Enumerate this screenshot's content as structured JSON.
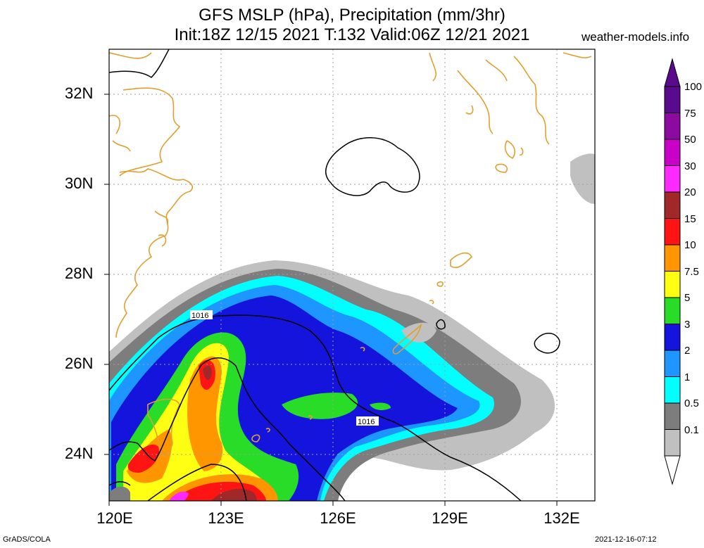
{
  "header": {
    "title_line1": "GFS MSLP (hPa), Precipitation (mm/3hr)",
    "title_line2": "Init:18Z 12/15 2021 T:132 Valid:06Z 12/21 2021",
    "site": "weather-models.info"
  },
  "axes": {
    "y_ticks": [
      "32N",
      "30N",
      "28N",
      "26N",
      "24N"
    ],
    "x_ticks": [
      "120E",
      "123E",
      "126E",
      "129E",
      "132E"
    ]
  },
  "isobar_labels": [
    "1016",
    "1016"
  ],
  "colorbar": {
    "labels": [
      "100",
      "75",
      "50",
      "30",
      "20",
      "15",
      "10",
      "7.5",
      "5",
      "3",
      "2",
      "1",
      "0.5",
      "0.1"
    ],
    "colors": [
      "#5a0a8c",
      "#8c0aa0",
      "#c800c8",
      "#ff28ff",
      "#a02828",
      "#ff1414",
      "#ff9600",
      "#ffff14",
      "#28dc28",
      "#1414dc",
      "#1e96ff",
      "#00ffff",
      "#7d7d7d",
      "#c0c0c0"
    ]
  },
  "colors": {
    "coast": "#e0a030",
    "isobar": "#000000",
    "grid": "#a0a0a0"
  },
  "footer": {
    "left": "GrADS/COLA",
    "right": "2021-12-16-07:12"
  }
}
